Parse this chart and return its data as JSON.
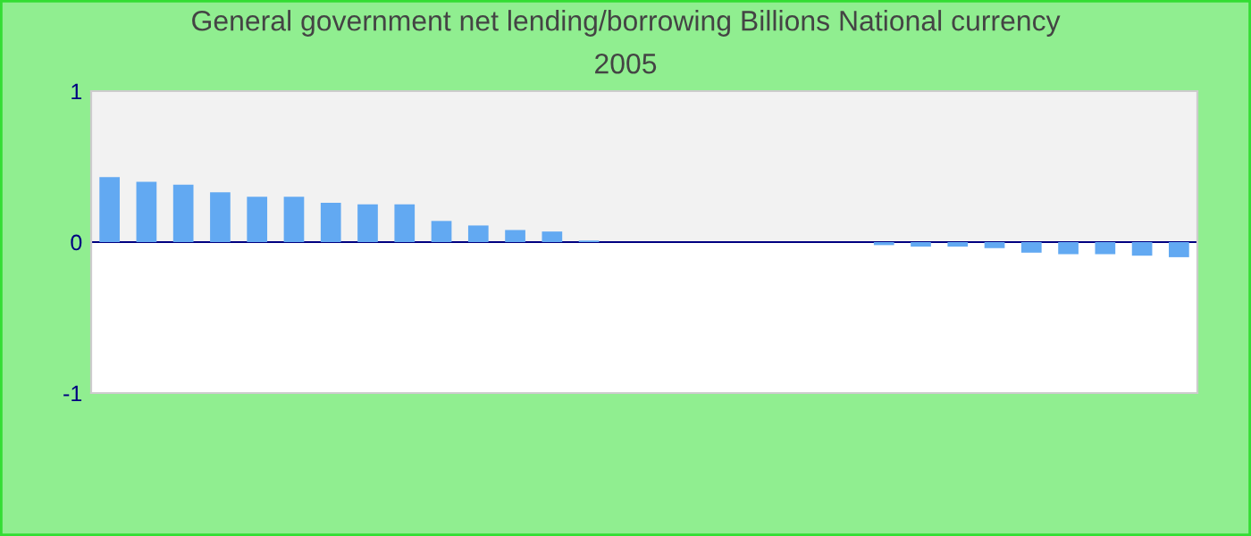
{
  "chart_data": {
    "type": "bar",
    "title": "General government net lending/borrowing Billions National currency",
    "subtitle": "2005",
    "categories": [
      null,
      null,
      null,
      null,
      null,
      null,
      null,
      null,
      null,
      null,
      null,
      null,
      null,
      null,
      null,
      null,
      null,
      null,
      null,
      null,
      null,
      null,
      null,
      null,
      null,
      null,
      null,
      null,
      null,
      null
    ],
    "series": [
      {
        "color": "#62a9f2",
        "values": [
          0.43,
          0.4,
          0.38,
          0.33,
          0.3,
          0.3,
          0.26,
          0.25,
          0.25,
          0.14,
          0.11,
          0.08,
          0.07,
          0.01,
          null,
          null,
          null,
          null,
          null,
          null,
          null,
          -0.02,
          -0.03,
          -0.03,
          -0.04,
          -0.07,
          -0.08,
          -0.08,
          -0.09,
          -0.1
        ]
      }
    ],
    "ylim": [
      -1,
      1
    ],
    "yticks": [
      -1,
      0,
      1
    ],
    "grid": false,
    "legend": false,
    "ref_lines": [
      {
        "axis": "y",
        "value": 0,
        "color": "#000080"
      }
    ],
    "bands": [
      {
        "axis": "y",
        "from": 0,
        "to": 1,
        "color": "#f2f2f2"
      }
    ]
  }
}
